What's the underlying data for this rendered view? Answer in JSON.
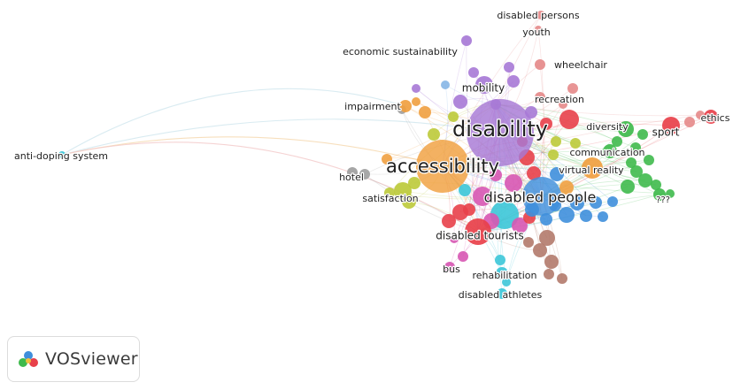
{
  "clusters": {
    "purple": "#a779d6",
    "orange": "#f0a040",
    "blue": "#3f8fdc",
    "cyan": "#3cc6d8",
    "red": "#e8404a",
    "green": "#3fba4c",
    "pink": "#d757b3",
    "brown": "#b27a6b",
    "salmon": "#e58a8a",
    "olive": "#bcca3a",
    "grey": "#9e9e9e",
    "lightblue": "#86b6e6"
  },
  "nodes": [
    {
      "label": "disability",
      "cluster": "purple"
    },
    {
      "label": "accessibility",
      "cluster": "orange"
    },
    {
      "label": "disabled people",
      "cluster": "blue"
    },
    {
      "label": "disabled tourists",
      "cluster": "red"
    },
    {
      "label": "disabled persons",
      "cluster": "salmon"
    },
    {
      "label": "youth",
      "cluster": "salmon"
    },
    {
      "label": "economic sustainability",
      "cluster": "purple"
    },
    {
      "label": "wheelchair",
      "cluster": "salmon"
    },
    {
      "label": "mobility",
      "cluster": "purple"
    },
    {
      "label": "recreation",
      "cluster": "salmon"
    },
    {
      "label": "impairment",
      "cluster": "orange"
    },
    {
      "label": "ethics",
      "cluster": "red"
    },
    {
      "label": "diversity",
      "cluster": "green"
    },
    {
      "label": "sport",
      "cluster": "red"
    },
    {
      "label": "communication",
      "cluster": "green"
    },
    {
      "label": "virtual reality",
      "cluster": "orange"
    },
    {
      "label": "hotel",
      "cluster": "grey"
    },
    {
      "label": "satisfaction",
      "cluster": "olive"
    },
    {
      "label": "???",
      "cluster": "green"
    },
    {
      "label": "anti-doping system",
      "cluster": "cyan"
    },
    {
      "label": "bus",
      "cluster": "pink"
    },
    {
      "label": "rehabilitation",
      "cluster": "cyan"
    },
    {
      "label": "disabled athletes",
      "cluster": "cyan"
    }
  ],
  "branding": {
    "name": "VOSviewer"
  }
}
